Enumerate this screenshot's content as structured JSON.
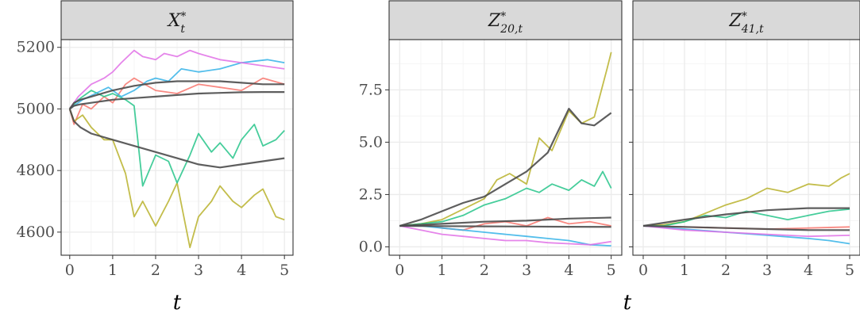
{
  "colors": {
    "panel_bg": "#ffffff",
    "strip_bg": "#d9d9d9",
    "grid_major": "#ebebeb",
    "grid_minor": "#f5f5f5",
    "border": "#333333",
    "mean_line": "#4d4d4d"
  },
  "chart_data": [
    {
      "type": "line",
      "panel": "left",
      "strip": "X",
      "strip_sup": "*",
      "strip_sub": "t",
      "xlabel": "t",
      "xlim": [
        -0.2,
        5.2
      ],
      "ylim": [
        4525,
        5225
      ],
      "xticks": [
        0,
        1,
        2,
        3,
        4,
        5
      ],
      "xtick_labels": [
        "0",
        "1",
        "2",
        "3",
        "4",
        "5"
      ],
      "yticks": [
        4600,
        4800,
        5000,
        5200
      ],
      "ytick_labels": [
        "4600",
        "4800",
        "5000",
        "5200"
      ],
      "grid": true,
      "series": [
        {
          "color": "#f8766d",
          "x": [
            0,
            0.1,
            0.3,
            0.5,
            0.8,
            1.0,
            1.3,
            1.5,
            2.0,
            2.5,
            3.0,
            3.5,
            4.0,
            4.5,
            5.0
          ],
          "y": [
            5000,
            4950,
            5015,
            5000,
            5040,
            5020,
            5080,
            5100,
            5060,
            5050,
            5080,
            5070,
            5060,
            5100,
            5080
          ]
        },
        {
          "color": "#b8b12b",
          "x": [
            0,
            0.1,
            0.3,
            0.5,
            0.8,
            1.0,
            1.3,
            1.5,
            1.7,
            2.0,
            2.3,
            2.5,
            2.8,
            3.0,
            3.3,
            3.5,
            3.8,
            4.0,
            4.3,
            4.5,
            4.8,
            5.0
          ],
          "y": [
            5000,
            4960,
            4980,
            4940,
            4900,
            4900,
            4790,
            4650,
            4700,
            4620,
            4700,
            4760,
            4550,
            4650,
            4700,
            4750,
            4700,
            4680,
            4720,
            4740,
            4650,
            4640
          ]
        },
        {
          "color": "#26c48a",
          "x": [
            0,
            0.2,
            0.5,
            0.8,
            1.0,
            1.3,
            1.5,
            1.7,
            2.0,
            2.3,
            2.5,
            2.8,
            3.0,
            3.3,
            3.5,
            3.8,
            4.0,
            4.3,
            4.5,
            4.8,
            5.0
          ],
          "y": [
            5000,
            5030,
            5060,
            5040,
            5050,
            5030,
            5010,
            4750,
            4850,
            4830,
            4760,
            4850,
            4920,
            4860,
            4890,
            4840,
            4900,
            4950,
            4880,
            4900,
            4930
          ]
        },
        {
          "color": "#35b3e8",
          "x": [
            0,
            0.3,
            0.6,
            0.9,
            1.2,
            1.5,
            1.8,
            2.0,
            2.3,
            2.6,
            3.0,
            3.5,
            4.0,
            4.3,
            4.6,
            5.0
          ],
          "y": [
            5000,
            5030,
            5050,
            5070,
            5040,
            5060,
            5090,
            5100,
            5090,
            5130,
            5120,
            5130,
            5150,
            5155,
            5160,
            5150
          ]
        },
        {
          "color": "#e070e6",
          "x": [
            0,
            0.2,
            0.5,
            0.8,
            1.0,
            1.2,
            1.5,
            1.7,
            2.0,
            2.2,
            2.5,
            2.8,
            3.0,
            3.5,
            4.0,
            4.5,
            5.0
          ],
          "y": [
            5000,
            5040,
            5080,
            5100,
            5120,
            5150,
            5190,
            5170,
            5160,
            5180,
            5170,
            5190,
            5180,
            5160,
            5150,
            5140,
            5130
          ]
        },
        {
          "color": "#4d4d4d",
          "x": [
            0,
            0.1,
            0.25,
            0.5,
            1.0,
            1.5,
            2.0,
            2.5,
            3.0,
            3.5,
            4.0,
            4.5,
            5.0
          ],
          "y": [
            5000,
            5020,
            5030,
            5040,
            5060,
            5075,
            5085,
            5090,
            5090,
            5090,
            5085,
            5080,
            5080
          ]
        },
        {
          "color": "#4d4d4d",
          "x": [
            0,
            0.1,
            0.25,
            0.5,
            1.0,
            1.5,
            2.0,
            2.5,
            3.0,
            3.5,
            4.0,
            4.5,
            5.0
          ],
          "y": [
            5000,
            5010,
            5015,
            5020,
            5030,
            5035,
            5040,
            5045,
            5050,
            5052,
            5054,
            5055,
            5055
          ]
        },
        {
          "color": "#4d4d4d",
          "x": [
            0,
            0.1,
            0.25,
            0.5,
            1.0,
            1.5,
            2.0,
            2.5,
            3.0,
            3.5,
            4.0,
            4.5,
            5.0
          ],
          "y": [
            5000,
            4960,
            4940,
            4920,
            4900,
            4880,
            4860,
            4840,
            4820,
            4810,
            4820,
            4830,
            4840
          ]
        }
      ]
    },
    {
      "type": "line",
      "panel": "middle",
      "strip": "Z",
      "strip_sup": "*",
      "strip_sub": "20,t",
      "xlabel": "t",
      "xlim": [
        -0.25,
        5.25
      ],
      "ylim": [
        -0.4,
        9.9
      ],
      "xticks": [
        0,
        1,
        2,
        3,
        4,
        5
      ],
      "xtick_labels": [
        "0",
        "1",
        "2",
        "3",
        "4",
        "5"
      ],
      "yticks": [
        0,
        2.5,
        5,
        7.5
      ],
      "ytick_labels": [
        "0.0",
        "2.5",
        "5.0",
        "7.5"
      ],
      "grid": true,
      "series": [
        {
          "color": "#f8766d",
          "x": [
            0,
            0.5,
            1.0,
            1.5,
            2.0,
            2.5,
            3.0,
            3.5,
            4.0,
            4.5,
            5.0
          ],
          "y": [
            1.0,
            1.1,
            0.9,
            0.8,
            1.1,
            1.2,
            1.0,
            1.4,
            1.1,
            1.2,
            1.0
          ]
        },
        {
          "color": "#b8b12b",
          "x": [
            0,
            0.5,
            1.0,
            1.5,
            2.0,
            2.3,
            2.6,
            3.0,
            3.3,
            3.6,
            4.0,
            4.3,
            4.6,
            4.9,
            5.0
          ],
          "y": [
            1.0,
            1.1,
            1.3,
            1.8,
            2.3,
            3.2,
            3.5,
            3.0,
            5.2,
            4.6,
            6.5,
            5.9,
            6.2,
            8.5,
            9.3
          ]
        },
        {
          "color": "#26c48a",
          "x": [
            0,
            0.5,
            1.0,
            1.5,
            2.0,
            2.5,
            3.0,
            3.3,
            3.6,
            4.0,
            4.3,
            4.6,
            4.8,
            5.0
          ],
          "y": [
            1.0,
            1.1,
            1.2,
            1.5,
            2.0,
            2.3,
            2.8,
            2.6,
            3.0,
            2.7,
            3.2,
            2.9,
            3.6,
            2.8
          ]
        },
        {
          "color": "#35b3e8",
          "x": [
            0,
            0.5,
            1.0,
            1.5,
            2.0,
            2.5,
            3.0,
            3.5,
            4.0,
            4.5,
            5.0
          ],
          "y": [
            1.0,
            1.0,
            0.9,
            0.8,
            0.7,
            0.6,
            0.5,
            0.4,
            0.3,
            0.1,
            0.05
          ]
        },
        {
          "color": "#e070e6",
          "x": [
            0,
            0.5,
            1.0,
            1.5,
            2.0,
            2.5,
            3.0,
            3.5,
            4.0,
            4.5,
            5.0
          ],
          "y": [
            1.0,
            0.8,
            0.6,
            0.5,
            0.4,
            0.3,
            0.3,
            0.2,
            0.15,
            0.1,
            0.25
          ]
        },
        {
          "color": "#4d4d4d",
          "x": [
            0,
            0.5,
            1.0,
            1.5,
            2.0,
            2.5,
            3.0,
            3.5,
            4.0,
            4.3,
            4.6,
            5.0
          ],
          "y": [
            1.0,
            1.3,
            1.7,
            2.1,
            2.4,
            3.0,
            3.6,
            4.5,
            6.6,
            5.9,
            5.8,
            6.4
          ]
        },
        {
          "color": "#4d4d4d",
          "x": [
            0,
            1.0,
            2.0,
            3.0,
            4.0,
            5.0
          ],
          "y": [
            1.0,
            1.1,
            1.2,
            1.25,
            1.35,
            1.4
          ]
        },
        {
          "color": "#4d4d4d",
          "x": [
            0,
            1.0,
            2.0,
            3.0,
            4.0,
            5.0
          ],
          "y": [
            1.0,
            0.99,
            0.98,
            0.97,
            0.96,
            0.95
          ]
        }
      ]
    },
    {
      "type": "line",
      "panel": "right",
      "strip": "Z",
      "strip_sup": "*",
      "strip_sub": "41,t",
      "xlabel": "",
      "xlim": [
        -0.25,
        5.25
      ],
      "ylim": [
        -0.4,
        9.9
      ],
      "xticks": [
        0,
        1,
        2,
        3,
        4,
        5
      ],
      "xtick_labels": [
        "0",
        "1",
        "2",
        "3",
        "4",
        "5"
      ],
      "yticks": [
        0,
        2.5,
        5,
        7.5
      ],
      "ytick_labels": [],
      "grid": true,
      "series": [
        {
          "color": "#f8766d",
          "x": [
            0,
            1.0,
            2.0,
            3.0,
            4.0,
            5.0
          ],
          "y": [
            1.0,
            0.95,
            0.9,
            0.85,
            0.9,
            0.95
          ]
        },
        {
          "color": "#b8b12b",
          "x": [
            0,
            0.5,
            1.0,
            1.5,
            2.0,
            2.5,
            3.0,
            3.5,
            4.0,
            4.5,
            4.8,
            5.0
          ],
          "y": [
            1.0,
            1.05,
            1.2,
            1.6,
            2.0,
            2.3,
            2.8,
            2.6,
            3.0,
            2.9,
            3.3,
            3.5
          ]
        },
        {
          "color": "#26c48a",
          "x": [
            0,
            0.5,
            1.0,
            1.5,
            2.0,
            2.5,
            3.0,
            3.5,
            4.0,
            4.5,
            5.0
          ],
          "y": [
            1.0,
            1.0,
            1.2,
            1.5,
            1.4,
            1.7,
            1.5,
            1.3,
            1.5,
            1.7,
            1.8
          ]
        },
        {
          "color": "#35b3e8",
          "x": [
            0,
            1.0,
            2.0,
            3.0,
            4.0,
            4.5,
            5.0
          ],
          "y": [
            1.0,
            0.85,
            0.7,
            0.55,
            0.4,
            0.3,
            0.15
          ]
        },
        {
          "color": "#e070e6",
          "x": [
            0,
            1.0,
            2.0,
            3.0,
            4.0,
            5.0
          ],
          "y": [
            1.0,
            0.8,
            0.7,
            0.6,
            0.5,
            0.55
          ]
        },
        {
          "color": "#4d4d4d",
          "x": [
            0,
            1.0,
            2.0,
            3.0,
            4.0,
            5.0
          ],
          "y": [
            1.0,
            1.3,
            1.55,
            1.75,
            1.85,
            1.85
          ]
        },
        {
          "color": "#4d4d4d",
          "x": [
            0,
            1.0,
            2.0,
            3.0,
            4.0,
            5.0
          ],
          "y": [
            1.0,
            0.95,
            0.9,
            0.85,
            0.8,
            0.8
          ]
        }
      ]
    }
  ]
}
